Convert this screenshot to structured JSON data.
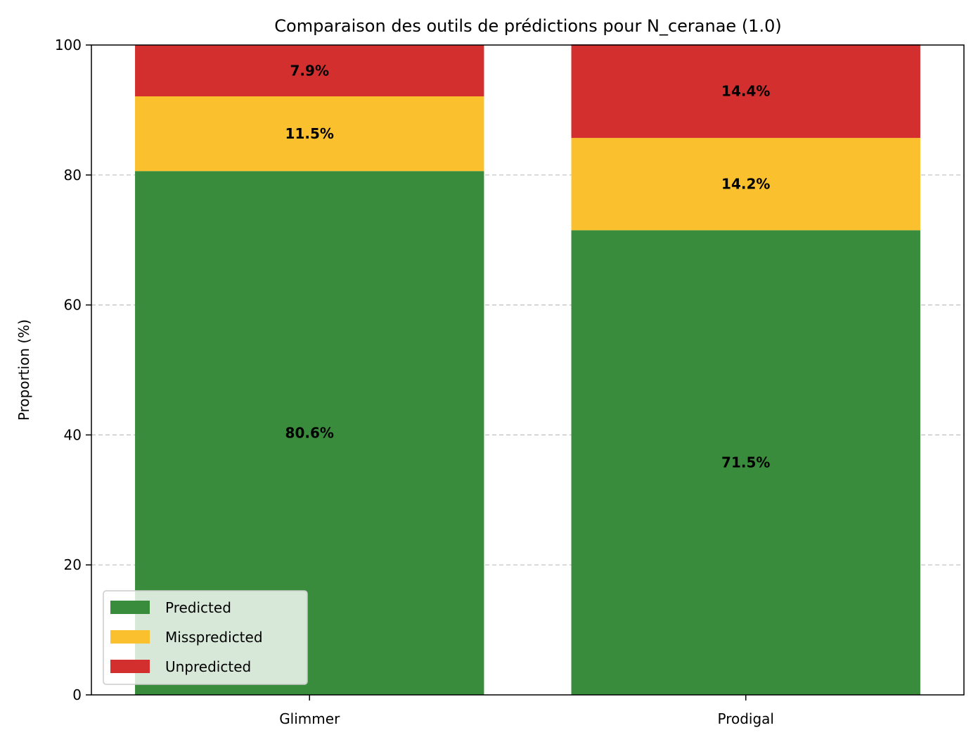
{
  "chart_data": {
    "type": "bar",
    "stacked": true,
    "title": "Comparaison des outils de prédictions pour N_ceranae (1.0)",
    "xlabel": "",
    "ylabel": "Proportion (%)",
    "ylim": [
      0,
      100
    ],
    "yticks": [
      0,
      20,
      40,
      60,
      80,
      100
    ],
    "grid": {
      "y": true,
      "x": false,
      "style": "dashed"
    },
    "categories": [
      "Glimmer",
      "Prodigal"
    ],
    "series": [
      {
        "name": "Predicted",
        "color": "#3a8c3d",
        "values": [
          80.6,
          71.5
        ],
        "labels": [
          "80.6%",
          "71.5%"
        ]
      },
      {
        "name": "Misspredicted",
        "color": "#fbc02d",
        "values": [
          11.5,
          14.2
        ],
        "labels": [
          "11.5%",
          "14.2%"
        ]
      },
      {
        "name": "Unpredicted",
        "color": "#d32f2f",
        "values": [
          7.9,
          14.4
        ],
        "labels": [
          "7.9%",
          "14.4%"
        ]
      }
    ],
    "legend": {
      "position": "lower-left"
    }
  }
}
